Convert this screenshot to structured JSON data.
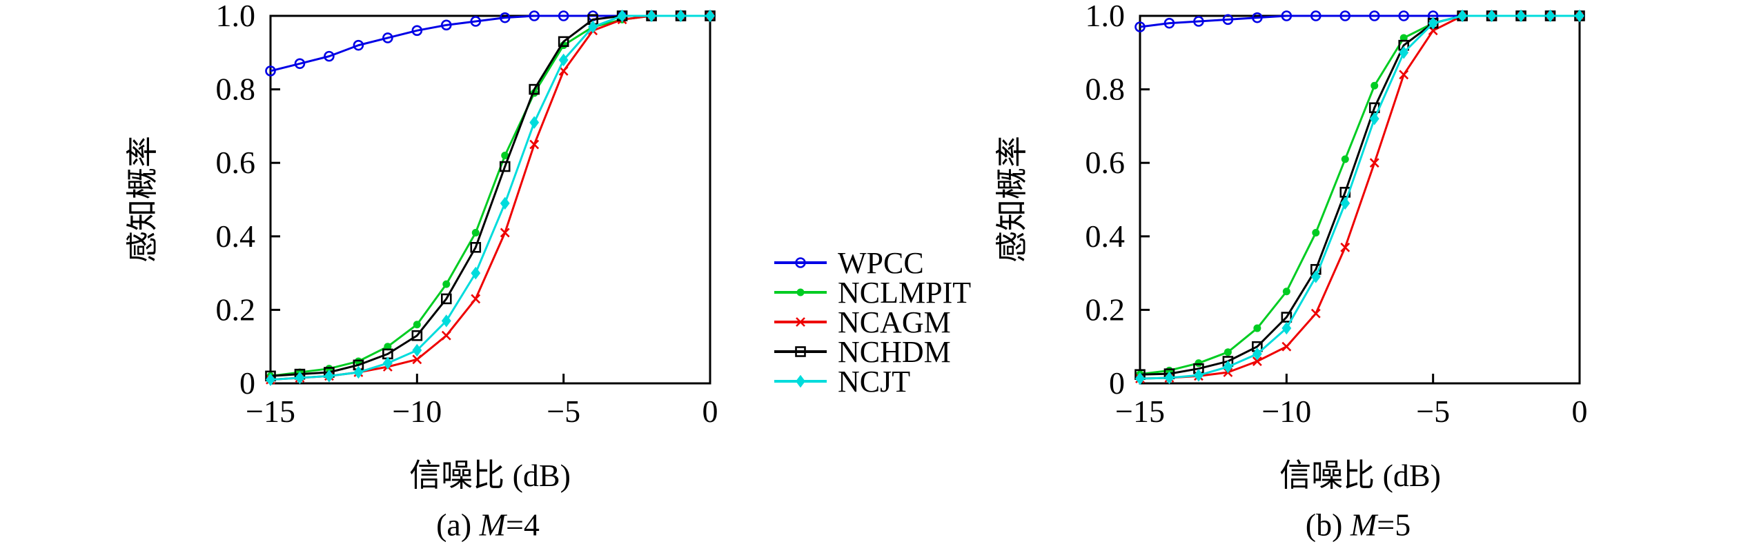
{
  "figure": {
    "ylabel": "感知概率",
    "xlabel": "信噪比 (dB)",
    "captions": [
      {
        "prefix": "(a) ",
        "variable": "M",
        "suffix": "=4"
      },
      {
        "prefix": "(b) ",
        "variable": "M",
        "suffix": "=5"
      }
    ],
    "legend_labels": [
      "WPCC",
      "NCLMPIT",
      "NCAGM",
      "NCHDM",
      "NCJT"
    ],
    "colors": {
      "wpcc": "#0000e6",
      "nclmpit": "#00cc22",
      "ncagm": "#ee0000",
      "nchdm": "#000000",
      "ncjt": "#00dcdc",
      "axis": "#000000",
      "background": "#ffffff"
    }
  },
  "chart_data": [
    {
      "type": "line",
      "title": "(a) M=4",
      "xlabel": "信噪比 (dB)",
      "ylabel": "感知概率",
      "xlim": [
        -15,
        0
      ],
      "ylim": [
        0,
        1
      ],
      "grid": false,
      "legend_position": "center-right-of-plot",
      "x": [
        -15,
        -14,
        -13,
        -12,
        -11,
        -10,
        -9,
        -8,
        -7,
        -6,
        -5,
        -4,
        -3,
        -2,
        -1,
        0
      ],
      "xticks": [
        -15,
        -10,
        -5,
        0
      ],
      "xtick_labels": [
        "−15",
        "−10",
        "−5",
        "0"
      ],
      "yticks": [
        0,
        0.2,
        0.4,
        0.6,
        0.8,
        1.0
      ],
      "ytick_labels": [
        "0",
        "0.2",
        "0.4",
        "0.6",
        "0.8",
        "1.0"
      ],
      "series": [
        {
          "name": "WPCC",
          "color": "#0000e6",
          "marker": "circle-open",
          "values": [
            0.85,
            0.87,
            0.89,
            0.92,
            0.94,
            0.96,
            0.975,
            0.985,
            0.995,
            1,
            1,
            1,
            1,
            1,
            1,
            1
          ]
        },
        {
          "name": "NCLMPIT",
          "color": "#00cc22",
          "marker": "circle-filled",
          "values": [
            0.02,
            0.03,
            0.04,
            0.06,
            0.1,
            0.16,
            0.27,
            0.41,
            0.62,
            0.79,
            0.92,
            0.97,
            0.99,
            1,
            1,
            1
          ]
        },
        {
          "name": "NCAGM",
          "color": "#ee0000",
          "marker": "x",
          "values": [
            0.01,
            0.015,
            0.02,
            0.03,
            0.045,
            0.065,
            0.13,
            0.23,
            0.41,
            0.65,
            0.85,
            0.96,
            0.99,
            1,
            1,
            1
          ]
        },
        {
          "name": "NCHDM",
          "color": "#000000",
          "marker": "square-open",
          "values": [
            0.02,
            0.025,
            0.03,
            0.05,
            0.08,
            0.13,
            0.23,
            0.37,
            0.59,
            0.8,
            0.93,
            0.99,
            1,
            1,
            1,
            1
          ]
        },
        {
          "name": "NCJT",
          "color": "#00dcdc",
          "marker": "diamond-filled",
          "values": [
            0.01,
            0.015,
            0.02,
            0.03,
            0.055,
            0.09,
            0.17,
            0.3,
            0.49,
            0.71,
            0.88,
            0.97,
            1,
            1,
            1,
            1
          ]
        }
      ]
    },
    {
      "type": "line",
      "title": "(b) M=5",
      "xlabel": "信噪比 (dB)",
      "ylabel": "感知概率",
      "xlim": [
        -15,
        0
      ],
      "ylim": [
        0,
        1
      ],
      "grid": false,
      "x": [
        -15,
        -14,
        -13,
        -12,
        -11,
        -10,
        -9,
        -8,
        -7,
        -6,
        -5,
        -4,
        -3,
        -2,
        -1,
        0
      ],
      "xticks": [
        -15,
        -10,
        -5,
        0
      ],
      "xtick_labels": [
        "−15",
        "−10",
        "−5",
        "0"
      ],
      "yticks": [
        0,
        0.2,
        0.4,
        0.6,
        0.8,
        1.0
      ],
      "ytick_labels": [
        "0",
        "0.2",
        "0.4",
        "0.6",
        "0.8",
        "1.0"
      ],
      "series": [
        {
          "name": "WPCC",
          "color": "#0000e6",
          "marker": "circle-open",
          "values": [
            0.97,
            0.98,
            0.985,
            0.99,
            0.995,
            1,
            1,
            1,
            1,
            1,
            1,
            1,
            1,
            1,
            1,
            1
          ]
        },
        {
          "name": "NCLMPIT",
          "color": "#00cc22",
          "marker": "circle-filled",
          "values": [
            0.025,
            0.035,
            0.055,
            0.085,
            0.15,
            0.25,
            0.41,
            0.61,
            0.81,
            0.94,
            0.98,
            1,
            1,
            1,
            1,
            1
          ]
        },
        {
          "name": "NCAGM",
          "color": "#ee0000",
          "marker": "x",
          "values": [
            0.013,
            0.015,
            0.02,
            0.03,
            0.06,
            0.1,
            0.19,
            0.37,
            0.6,
            0.84,
            0.96,
            1,
            1,
            1,
            1,
            1
          ]
        },
        {
          "name": "NCHDM",
          "color": "#000000",
          "marker": "square-open",
          "values": [
            0.024,
            0.026,
            0.04,
            0.06,
            0.1,
            0.18,
            0.31,
            0.52,
            0.75,
            0.92,
            0.98,
            1,
            1,
            1,
            1,
            1
          ]
        },
        {
          "name": "NCJT",
          "color": "#00dcdc",
          "marker": "diamond-filled",
          "values": [
            0.013,
            0.015,
            0.022,
            0.045,
            0.08,
            0.15,
            0.29,
            0.49,
            0.72,
            0.9,
            0.98,
            1,
            1,
            1,
            1,
            1
          ]
        }
      ]
    }
  ]
}
